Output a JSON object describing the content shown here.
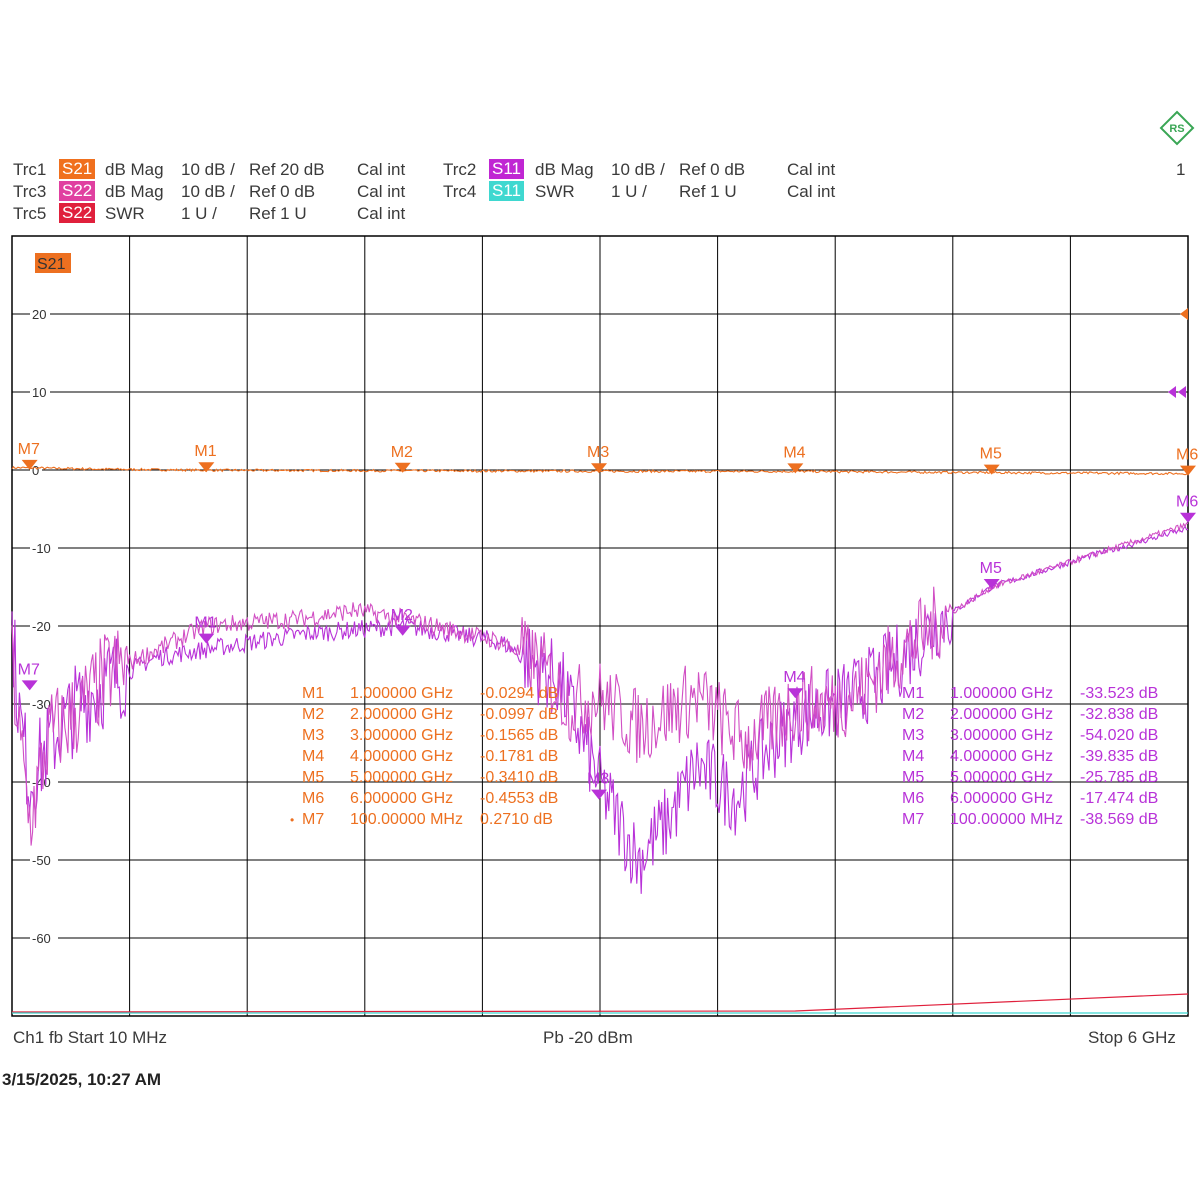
{
  "header": {
    "channel_count": "1",
    "rows": [
      {
        "trc": "Trc1",
        "s": "S21",
        "color": "#f0701e",
        "fmt": "dB Mag",
        "scale": "10 dB /",
        "ref": "Ref 20 dB",
        "cal": "Cal int"
      },
      {
        "trc": "Trc2",
        "s": "S11",
        "color": "#c026d3",
        "fmt": "dB Mag",
        "scale": "10 dB /",
        "ref": "Ref 0 dB",
        "cal": "Cal int"
      },
      {
        "trc": "Trc3",
        "s": "S22",
        "color": "#e040a0",
        "fmt": "dB Mag",
        "scale": "10 dB /",
        "ref": "Ref 0 dB",
        "cal": "Cal int"
      },
      {
        "trc": "Trc4",
        "s": "S11",
        "color": "#3fd8d0",
        "fmt": "SWR",
        "scale": "1 U /",
        "ref": "Ref 1 U",
        "cal": "Cal int"
      },
      {
        "trc": "Trc5",
        "s": "S22",
        "color": "#e0203c",
        "fmt": "SWR",
        "scale": "1 U /",
        "ref": "Ref 1 U",
        "cal": ""
      }
    ],
    "trc5_cal": "Cal int"
  },
  "footer": {
    "left": "Ch1  fb  Start  10 MHz",
    "center": "Pb   -20 dBm",
    "right": "Stop  6 GHz",
    "timestamp": "3/15/2025, 10:27 AM"
  },
  "chart_data": {
    "type": "line",
    "active_trace_label": "S21",
    "x_range_ghz": [
      0.01,
      6
    ],
    "y_ticks": [
      "20",
      "10",
      "0",
      "-10",
      "-20",
      "-30",
      "-40",
      "-50",
      "-60"
    ],
    "ylim": [
      -70,
      30
    ],
    "grid": true,
    "colors": {
      "s21": "#ed7020",
      "s11": "#b832d8",
      "s22": "#d14fc4",
      "swr_s11": "#3fd8d0",
      "swr_s22": "#e0203c",
      "grid": "#000000"
    },
    "series": [
      {
        "name": "S21",
        "x": [
          0.01,
          0.1,
          0.5,
          1,
          1.5,
          2,
          2.5,
          3,
          3.5,
          4,
          4.5,
          5,
          5.5,
          6
        ],
        "y": [
          0.3,
          0.27,
          0.1,
          -0.03,
          -0.06,
          -0.1,
          -0.13,
          -0.16,
          -0.17,
          -0.18,
          -0.26,
          -0.34,
          -0.4,
          -0.46
        ]
      },
      {
        "name": "S11",
        "x": [
          0.01,
          0.05,
          0.1,
          0.2,
          0.35,
          0.5,
          0.75,
          1,
          1.5,
          2,
          2.5,
          2.8,
          3,
          3.2,
          3.35,
          3.5,
          3.7,
          3.85,
          4,
          4.2,
          4.35,
          4.5,
          4.75,
          5,
          5.5,
          6
        ],
        "y": [
          -20,
          -32,
          -40,
          -35,
          -30,
          -27,
          -24,
          -23,
          -21,
          -20,
          -22,
          -27,
          -40,
          -50,
          -45,
          -38,
          -42,
          -36,
          -32,
          -30,
          -28,
          -25,
          -19,
          -15,
          -11,
          -7.5
        ]
      },
      {
        "name": "S22",
        "x": [
          0.01,
          0.05,
          0.1,
          0.2,
          0.35,
          0.5,
          0.75,
          1,
          1.5,
          1.75,
          2,
          2.5,
          2.7,
          2.85,
          3,
          3.2,
          3.5,
          3.75,
          4,
          4.2,
          4.35,
          4.5,
          4.75,
          5,
          5.5,
          6
        ],
        "y": [
          -25,
          -35,
          -45,
          -34,
          -31,
          -26,
          -23,
          -20,
          -19,
          -18,
          -19,
          -22,
          -25,
          -30,
          -29,
          -33,
          -29,
          -35,
          -30,
          -30,
          -28,
          -24,
          -19,
          -15,
          -11,
          -7
        ]
      }
    ],
    "markers_s21": [
      {
        "id": "M1",
        "freq": "1.000000 GHz",
        "value": "-0.0294 dB"
      },
      {
        "id": "M2",
        "freq": "2.000000 GHz",
        "value": "-0.0997 dB"
      },
      {
        "id": "M3",
        "freq": "3.000000 GHz",
        "value": "-0.1565 dB"
      },
      {
        "id": "M4",
        "freq": "4.000000 GHz",
        "value": "-0.1781 dB"
      },
      {
        "id": "M5",
        "freq": "5.000000 GHz",
        "value": "-0.3410 dB"
      },
      {
        "id": "M6",
        "freq": "6.000000 GHz",
        "value": "-0.4553 dB"
      },
      {
        "id": "M7",
        "freq": "100.00000 MHz",
        "value": "0.2710 dB"
      }
    ],
    "markers_s11": [
      {
        "id": "M1",
        "freq": "1.000000 GHz",
        "value": "-33.523 dB"
      },
      {
        "id": "M2",
        "freq": "2.000000 GHz",
        "value": "-32.838 dB"
      },
      {
        "id": "M3",
        "freq": "3.000000 GHz",
        "value": "-54.020 dB"
      },
      {
        "id": "M4",
        "freq": "4.000000 GHz",
        "value": "-39.835 dB"
      },
      {
        "id": "M5",
        "freq": "5.000000 GHz",
        "value": "-25.785 dB"
      },
      {
        "id": "M6",
        "freq": "6.000000 GHz",
        "value": "-17.474 dB"
      },
      {
        "id": "M7",
        "freq": "100.00000 MHz",
        "value": "-38.569 dB"
      }
    ],
    "marker_arrows": {
      "active": "•"
    },
    "s21_markers_plot": [
      {
        "id": "M7",
        "x": 0.1,
        "y": 0.27
      },
      {
        "id": "M1",
        "x": 1,
        "y": -0.03
      },
      {
        "id": "M2",
        "x": 2,
        "y": -0.1
      },
      {
        "id": "M3",
        "x": 3,
        "y": -0.16
      },
      {
        "id": "M4",
        "x": 4,
        "y": -0.18
      },
      {
        "id": "M5",
        "x": 5,
        "y": -0.34
      },
      {
        "id": "M6",
        "x": 6,
        "y": -0.46
      }
    ],
    "s11_markers_plot": [
      {
        "id": "M7",
        "x": 0.1,
        "y": -28
      },
      {
        "id": "M1",
        "x": 1,
        "y": -22
      },
      {
        "id": "M2",
        "x": 2,
        "y": -21
      },
      {
        "id": "M3",
        "x": 3,
        "y": -42
      },
      {
        "id": "M4",
        "x": 4,
        "y": -29
      },
      {
        "id": "M5",
        "x": 5,
        "y": -15
      },
      {
        "id": "M6",
        "x": 6,
        "y": -6.5
      }
    ]
  }
}
